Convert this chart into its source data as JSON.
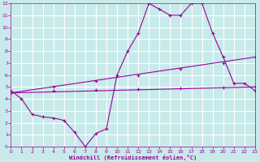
{
  "xlabel": "Windchill (Refroidissement éolien,°C)",
  "bg_color": "#c8eaea",
  "line_color": "#990099",
  "grid_color": "#ffffff",
  "xlim": [
    0,
    23
  ],
  "ylim": [
    0,
    12
  ],
  "xticks": [
    0,
    1,
    2,
    3,
    4,
    5,
    6,
    7,
    8,
    9,
    10,
    11,
    12,
    13,
    14,
    15,
    16,
    17,
    18,
    19,
    20,
    21,
    22,
    23
  ],
  "yticks": [
    0,
    1,
    2,
    3,
    4,
    5,
    6,
    7,
    8,
    9,
    10,
    11,
    12
  ],
  "line1_x": [
    0,
    1,
    2,
    3,
    4,
    5,
    6,
    7,
    8,
    9,
    10,
    11,
    12,
    13,
    14,
    15,
    16,
    17,
    18,
    19,
    20,
    21,
    22,
    23
  ],
  "line1_y": [
    4.7,
    4.0,
    2.7,
    2.5,
    2.4,
    2.2,
    1.2,
    0.0,
    1.1,
    1.5,
    6.0,
    8.0,
    9.5,
    12.0,
    11.5,
    11.0,
    11.0,
    12.0,
    12.0,
    9.5,
    7.5,
    5.3,
    5.3,
    4.7
  ],
  "line2_x": [
    0,
    23
  ],
  "line2_y": [
    4.5,
    5.0
  ],
  "line3_x": [
    0,
    23
  ],
  "line3_y": [
    4.5,
    7.5
  ],
  "marker_x2": [
    0,
    4,
    8,
    12,
    16,
    20,
    23
  ],
  "marker_y2": [
    4.5,
    4.7,
    4.75,
    4.83,
    4.9,
    4.95,
    5.0
  ],
  "marker_x3": [
    0,
    4,
    8,
    12,
    16,
    20,
    23
  ],
  "marker_y3": [
    4.5,
    5.0,
    5.5,
    6.0,
    6.5,
    7.0,
    7.5
  ]
}
